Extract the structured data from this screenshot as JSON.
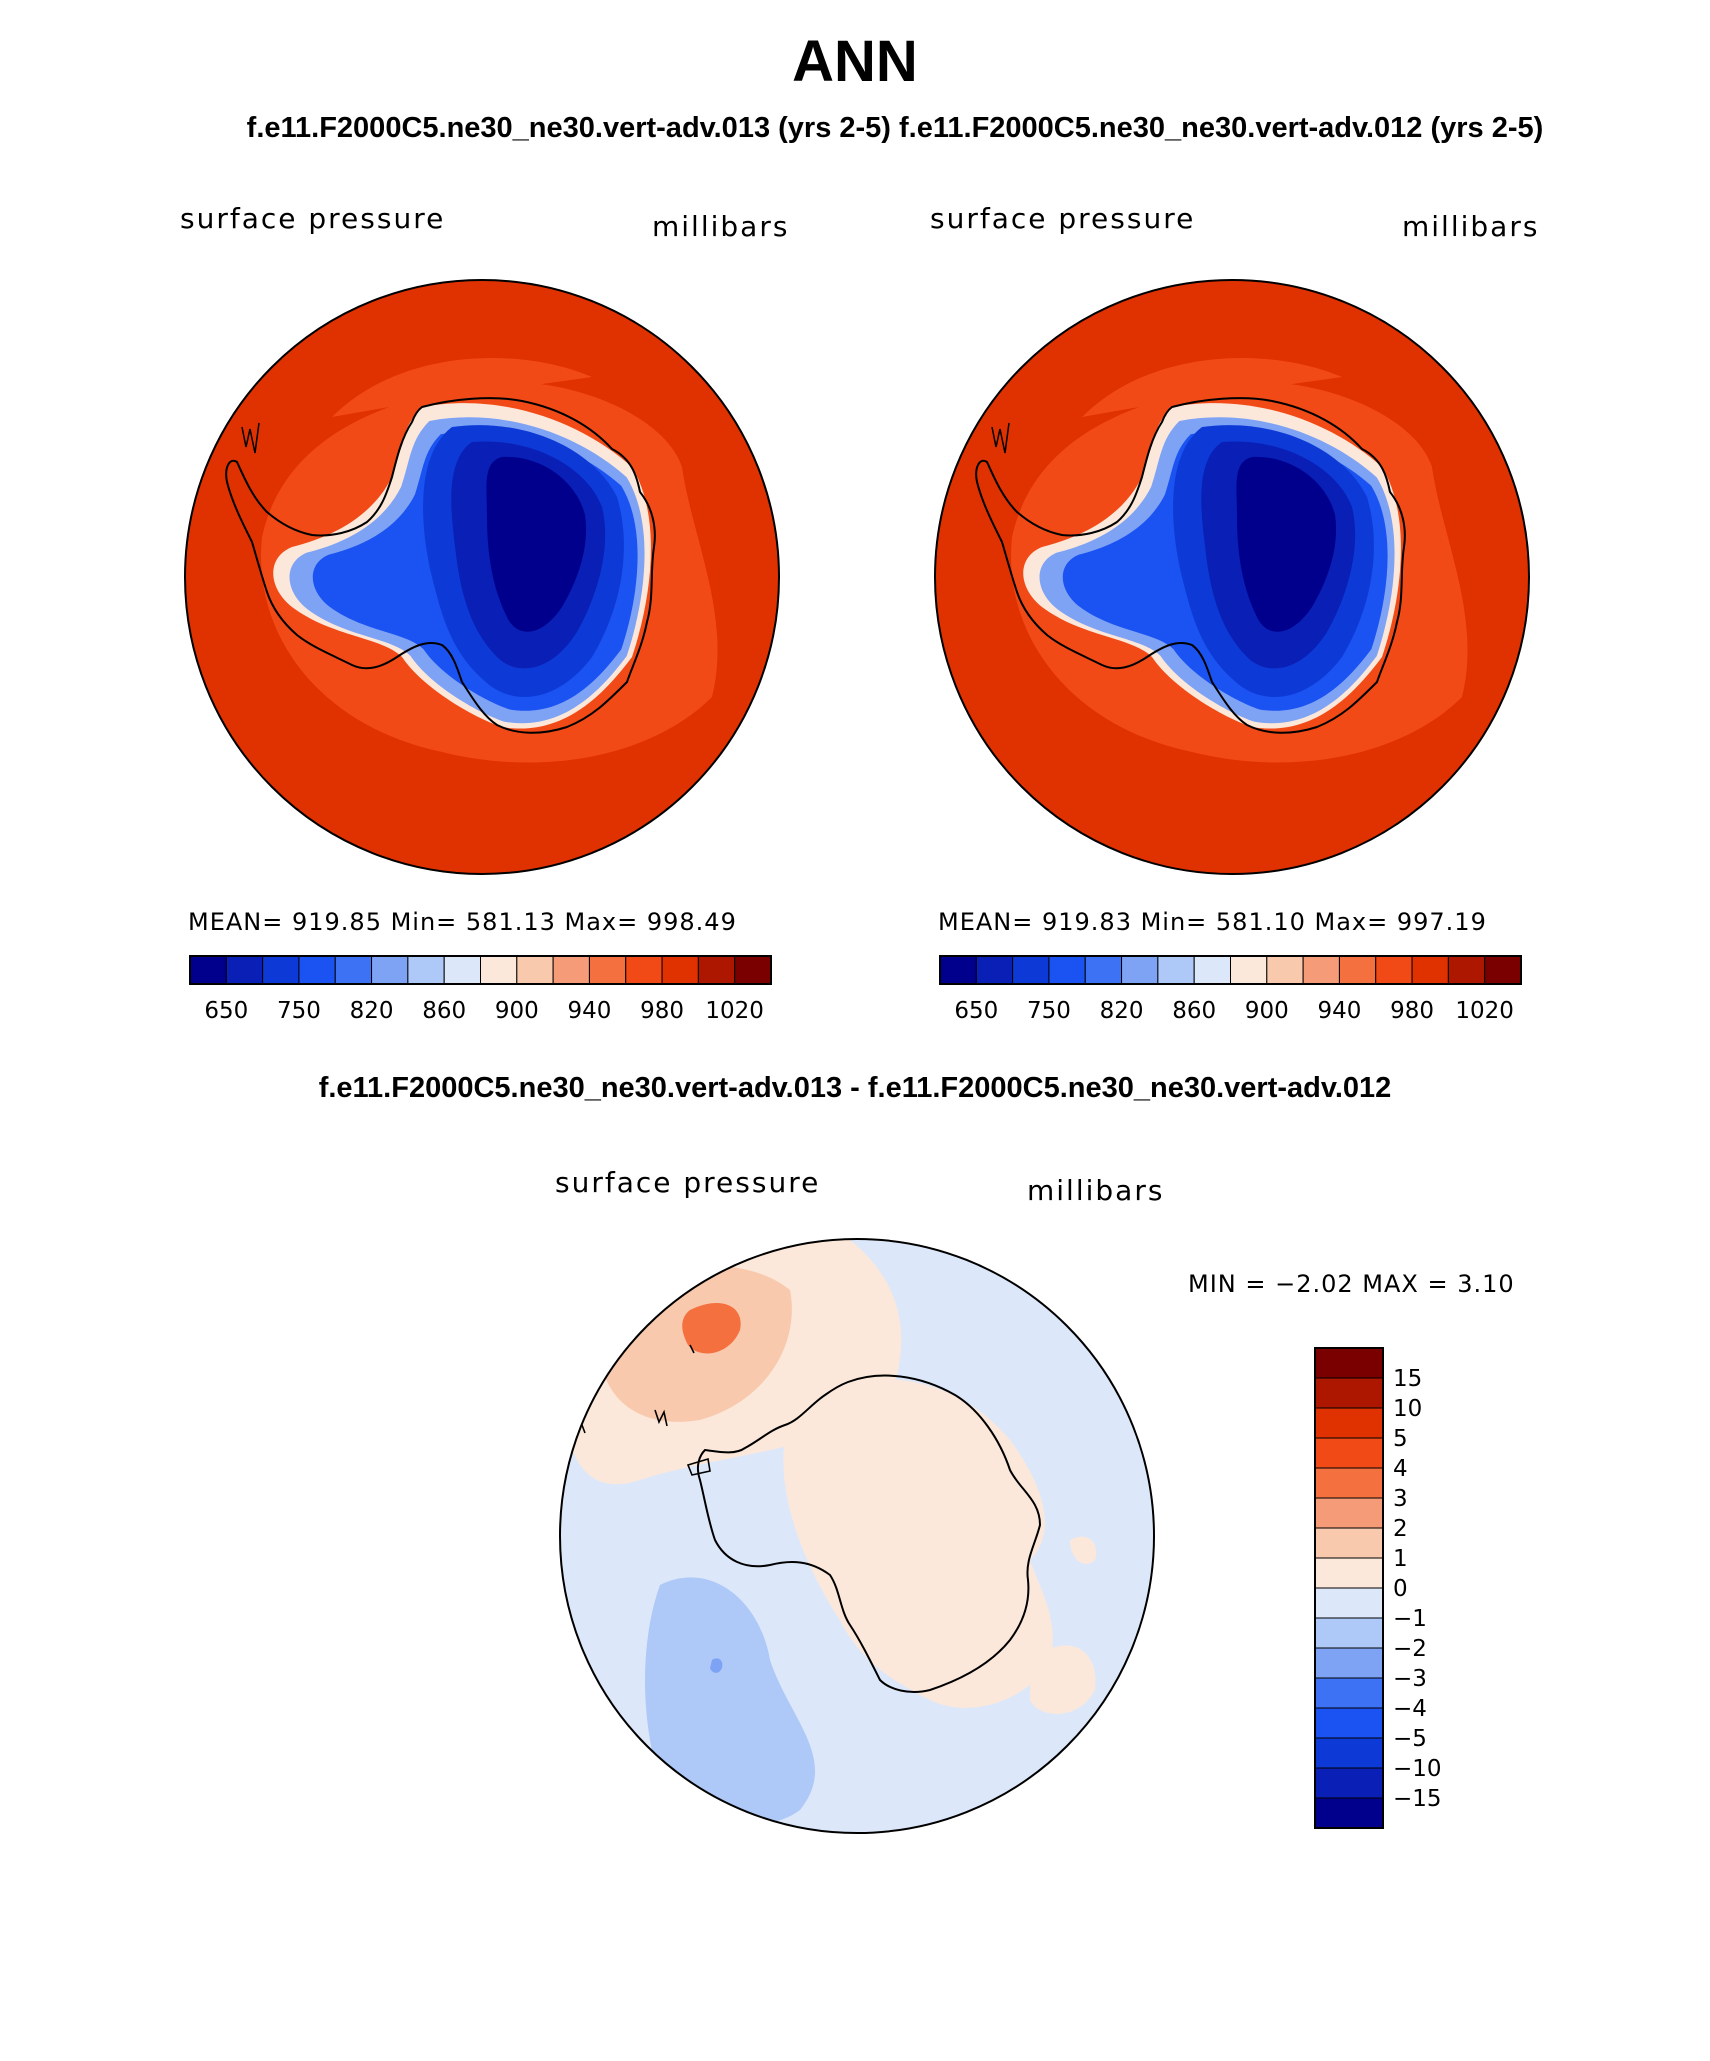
{
  "title": "ANN",
  "case_titles": "f.e11.F2000C5.ne30_ne30.vert-adv.013 (yrs 2-5)  f.e11.F2000C5.ne30_ne30.vert-adv.012 (yrs 2-5)",
  "diff_title": "f.e11.F2000C5.ne30_ne30.vert-adv.013 - f.e11.F2000C5.ne30_ne30.vert-adv.012",
  "panels": [
    {
      "variable": "surface pressure",
      "units": "millibars",
      "stats": "MEAN= 919.85   Min= 581.13   Max= 998.49"
    },
    {
      "variable": "surface pressure",
      "units": "millibars",
      "stats": "MEAN= 919.83   Min= 581.10   Max= 997.19"
    },
    {
      "variable": "surface pressure",
      "units": "millibars",
      "stats": "MIN =  −2.02 MAX =    3.10"
    }
  ],
  "colorbar_levels": [
    "650",
    "750",
    "820",
    "860",
    "900",
    "940",
    "980",
    "1020"
  ],
  "colorbar_colors": [
    "#00008c",
    "#0a1fb5",
    "#0d3ad6",
    "#1b52f2",
    "#3d72f5",
    "#7ea3f5",
    "#aec9f7",
    "#dce8fa",
    "#fbe8da",
    "#f8c9ac",
    "#f59b78",
    "#f4703f",
    "#f24a16",
    "#e03100",
    "#ad1700",
    "#7a0000"
  ],
  "diff_levels": [
    "15",
    "10",
    "5",
    "4",
    "3",
    "2",
    "1",
    "0",
    "−1",
    "−2",
    "−3",
    "−4",
    "−5",
    "−10",
    "−15"
  ],
  "diff_colors": [
    "#7a0000",
    "#ad1700",
    "#e03100",
    "#f24a16",
    "#f4703f",
    "#f59b78",
    "#f8c9ac",
    "#fbe8da",
    "#dce8fa",
    "#aec9f7",
    "#7ea3f5",
    "#3d72f5",
    "#1b52f2",
    "#0d3ad6",
    "#0a1fb5",
    "#00008c"
  ]
}
